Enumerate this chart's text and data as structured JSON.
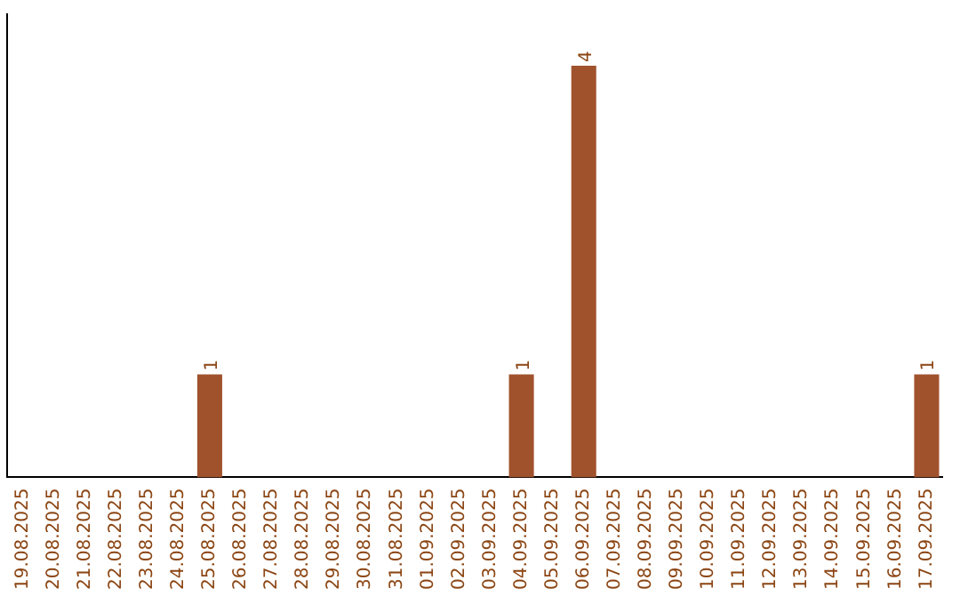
{
  "chart_data": {
    "type": "bar",
    "categories": [
      "19.08.2025",
      "20.08.2025",
      "21.08.2025",
      "22.08.2025",
      "23.08.2025",
      "24.08.2025",
      "25.08.2025",
      "26.08.2025",
      "27.08.2025",
      "28.08.2025",
      "29.08.2025",
      "30.08.2025",
      "31.08.2025",
      "01.09.2025",
      "02.09.2025",
      "03.09.2025",
      "04.09.2025",
      "05.09.2025",
      "06.09.2025",
      "07.09.2025",
      "08.09.2025",
      "09.09.2025",
      "10.09.2025",
      "11.09.2025",
      "12.09.2025",
      "13.09.2025",
      "14.09.2025",
      "15.09.2025",
      "16.09.2025",
      "17.09.2025"
    ],
    "values": [
      0,
      0,
      0,
      0,
      0,
      0,
      1,
      0,
      0,
      0,
      0,
      0,
      0,
      0,
      0,
      0,
      1,
      0,
      4,
      0,
      0,
      0,
      0,
      0,
      0,
      0,
      0,
      0,
      0,
      1
    ],
    "value_labels": [
      null,
      null,
      null,
      null,
      null,
      null,
      "1",
      null,
      null,
      null,
      null,
      null,
      null,
      null,
      null,
      null,
      "1",
      null,
      "4",
      null,
      null,
      null,
      null,
      null,
      null,
      null,
      null,
      null,
      null,
      "1"
    ],
    "color": "#a0522d",
    "tick_labels": "x",
    "grid": false,
    "legend": false
  }
}
